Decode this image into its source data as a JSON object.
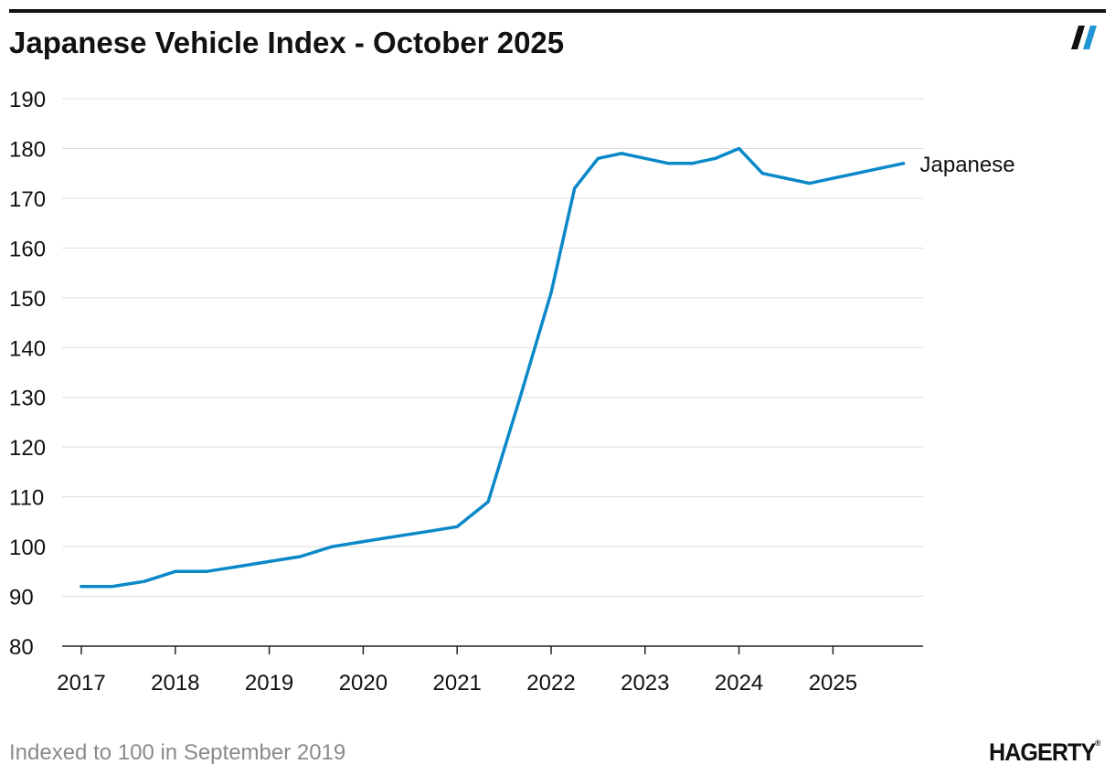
{
  "title": "Japanese Vehicle Index - October 2025",
  "footnote": "Indexed to 100 in September 2019",
  "brand": {
    "logo_icon": "double-slash-icon",
    "wordmark": "HAGERTY",
    "trademark": "®",
    "colors": {
      "line": "#0a88c8",
      "text": "#111111",
      "muted": "#8a8a8a",
      "grid": "#dddddd",
      "mark_dark": "#111111",
      "mark_light": "#1f95d3"
    }
  },
  "chart_data": {
    "type": "line",
    "title": "Japanese Vehicle Index - October 2025",
    "xlabel": "",
    "ylabel": "",
    "ylim": [
      80,
      190
    ],
    "yticks": [
      80,
      90,
      100,
      110,
      120,
      130,
      140,
      150,
      160,
      170,
      180,
      190
    ],
    "xlim": [
      2017,
      2026
    ],
    "xticks": [
      2017,
      2018,
      2019,
      2020,
      2021,
      2022,
      2023,
      2024,
      2025
    ],
    "grid": true,
    "legend": "end-of-line label",
    "series": [
      {
        "name": "Japanese",
        "x": [
          2017.0,
          2017.33,
          2017.67,
          2018.0,
          2018.33,
          2018.67,
          2019.0,
          2019.33,
          2019.67,
          2020.0,
          2020.33,
          2020.67,
          2021.0,
          2021.33,
          2021.67,
          2022.0,
          2022.25,
          2022.5,
          2022.75,
          2023.0,
          2023.25,
          2023.5,
          2023.75,
          2024.0,
          2024.25,
          2024.5,
          2024.75,
          2025.0,
          2025.25,
          2025.5,
          2025.75
        ],
        "y": [
          92,
          92,
          93,
          95,
          95,
          96,
          97,
          98,
          100,
          101,
          102,
          103,
          104,
          109,
          130,
          151,
          172,
          178,
          179,
          178,
          177,
          177,
          178,
          180,
          175,
          174,
          173,
          174,
          175,
          176,
          177
        ]
      }
    ]
  }
}
